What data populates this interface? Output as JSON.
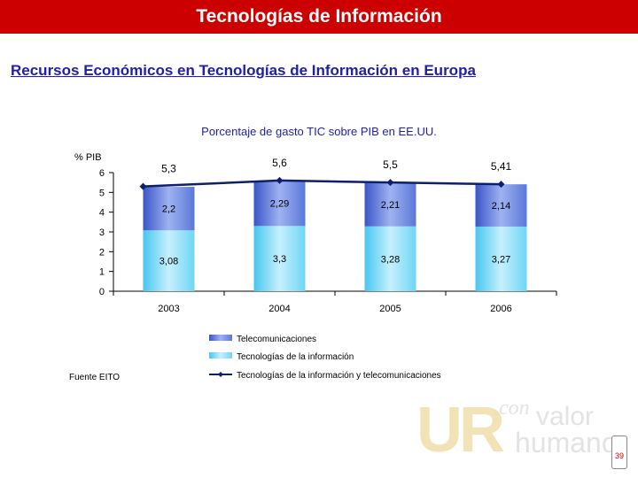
{
  "banner": {
    "title": "Tecnologías de Información"
  },
  "subtitle": "Recursos Económicos en Tecnologías de Información en Europa",
  "source": "Fuente EITO",
  "page_number": "39",
  "logo": {
    "ur": "UR",
    "con": "con",
    "valor": "valor",
    "humano": "humano"
  },
  "colors": {
    "banner": "#cc0000",
    "telecom": "#5b78d8",
    "it": "#6ed6f5",
    "line": "#0d1f6e",
    "title": "#1f1fa8"
  },
  "chart_data": {
    "type": "bar",
    "stacked": true,
    "title": "Porcentaje de gasto TIC sobre PIB en EE.UU.",
    "ylabel": "% PIB",
    "ylim": [
      0,
      6
    ],
    "yticks": [
      "0",
      "1",
      "2",
      "3",
      "4",
      "5",
      "6"
    ],
    "categories": [
      "2003",
      "2004",
      "2005",
      "2006"
    ],
    "grid": false,
    "legend": "bottom",
    "series": [
      {
        "name": "Tecnologías de la información",
        "kind": "bar",
        "values": [
          3.08,
          3.3,
          3.28,
          3.27
        ],
        "labels": [
          "3,08",
          "3,3",
          "3,28",
          "3,27"
        ]
      },
      {
        "name": "Telecomunicaciones",
        "kind": "bar",
        "values": [
          2.2,
          2.29,
          2.21,
          2.14
        ],
        "labels": [
          "2,2",
          "2,29",
          "2,21",
          "2,14"
        ]
      },
      {
        "name": "Tecnologías de la información y telecomunicaciones",
        "kind": "line",
        "values": [
          5.3,
          5.6,
          5.5,
          5.41
        ],
        "labels": [
          "5,3",
          "5,6",
          "5,5",
          "5,41"
        ]
      }
    ],
    "legend_order": [
      "Telecomunicaciones",
      "Tecnologías de la información",
      "Tecnologías de la información y telecomunicaciones"
    ]
  }
}
